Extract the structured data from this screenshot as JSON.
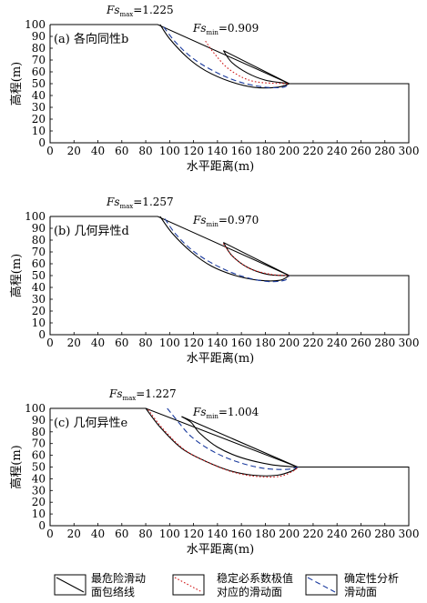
{
  "chart_data": [
    {
      "type": "line",
      "panel_label": "(a) 各向同性b",
      "xlabel": "水平距离(m)",
      "ylabel": "高程(m)",
      "xlim": [
        0,
        300
      ],
      "ylim": [
        0,
        100
      ],
      "xticks": [
        0,
        20,
        40,
        60,
        80,
        100,
        120,
        140,
        160,
        180,
        200,
        220,
        240,
        260,
        280,
        300
      ],
      "yticks": [
        0,
        10,
        20,
        30,
        40,
        50,
        60,
        70,
        80,
        90,
        100
      ],
      "fs_max_label": {
        "sym": "Fs",
        "sub": "max",
        "value": "=1.225"
      },
      "fs_min_label": {
        "sym": "Fs",
        "sub": "min",
        "value": "=0.909"
      },
      "slope_profile": {
        "x": [
          0,
          90,
          200,
          300,
          300,
          0,
          0
        ],
        "y": [
          100,
          100,
          50,
          50,
          0,
          0,
          100
        ]
      },
      "series": [
        {
          "style": "envelope",
          "x": [
            92,
            100,
            115,
            130,
            150,
            170,
            190,
            200
          ],
          "y": [
            100,
            88,
            72,
            61,
            52,
            47,
            47,
            50
          ]
        },
        {
          "style": "envelope",
          "x": [
            145,
            152,
            165,
            180,
            200
          ],
          "y": [
            78,
            68,
            59,
            53,
            50
          ]
        },
        {
          "style": "envelope",
          "x": [
            145,
            200
          ],
          "y": [
            78,
            50
          ]
        },
        {
          "style": "dotted",
          "x": [
            130,
            137,
            150,
            170,
            200
          ],
          "y": [
            86,
            76,
            62,
            52,
            50
          ]
        },
        {
          "style": "dashed",
          "x": [
            95,
            105,
            120,
            140,
            160,
            180,
            195,
            200
          ],
          "y": [
            98,
            85,
            71,
            59,
            51,
            47,
            47,
            50
          ]
        }
      ]
    },
    {
      "type": "line",
      "panel_label": "(b) 几何异性d",
      "xlabel": "水平距离(m)",
      "ylabel": "高程(m)",
      "xlim": [
        0,
        300
      ],
      "ylim": [
        0,
        100
      ],
      "xticks": [
        0,
        20,
        40,
        60,
        80,
        100,
        120,
        140,
        160,
        180,
        200,
        220,
        240,
        260,
        280,
        300
      ],
      "yticks": [
        0,
        10,
        20,
        30,
        40,
        50,
        60,
        70,
        80,
        90,
        100
      ],
      "fs_max_label": {
        "sym": "Fs",
        "sub": "max",
        "value": "=1.257"
      },
      "fs_min_label": {
        "sym": "Fs",
        "sub": "min",
        "value": "=0.970"
      },
      "slope_profile": {
        "x": [
          0,
          90,
          200,
          300,
          300,
          0,
          0
        ],
        "y": [
          100,
          100,
          50,
          50,
          0,
          0,
          100
        ]
      },
      "series": [
        {
          "style": "envelope",
          "x": [
            92,
            102,
            118,
            135,
            155,
            175,
            192,
            200
          ],
          "y": [
            100,
            86,
            70,
            58,
            50,
            46,
            46,
            50
          ]
        },
        {
          "style": "envelope",
          "x": [
            145,
            152,
            165,
            182,
            200
          ],
          "y": [
            78,
            67,
            57,
            51,
            50
          ]
        },
        {
          "style": "envelope",
          "x": [
            145,
            200
          ],
          "y": [
            78,
            50
          ]
        },
        {
          "style": "dotted",
          "x": [
            145,
            153,
            167,
            185,
            200
          ],
          "y": [
            77,
            66,
            56,
            51,
            50
          ]
        },
        {
          "style": "dashed",
          "x": [
            96,
            106,
            122,
            142,
            162,
            182,
            196,
            200
          ],
          "y": [
            98,
            84,
            69,
            57,
            49,
            45,
            46,
            50
          ]
        }
      ]
    },
    {
      "type": "line",
      "panel_label": "(c) 几何异性e",
      "xlabel": "水平距离(m)",
      "ylabel": "高程(m)",
      "xlim": [
        0,
        300
      ],
      "ylim": [
        0,
        100
      ],
      "xticks": [
        0,
        20,
        40,
        60,
        80,
        100,
        120,
        140,
        160,
        180,
        200,
        220,
        240,
        260,
        280,
        300
      ],
      "yticks": [
        0,
        10,
        20,
        30,
        40,
        50,
        60,
        70,
        80,
        90,
        100
      ],
      "fs_max_label": {
        "sym": "Fs",
        "sub": "max",
        "value": "=1.227"
      },
      "fs_min_label": {
        "sym": "Fs",
        "sub": "min",
        "value": "=1.004"
      },
      "slope_profile": {
        "x": [
          0,
          80,
          207,
          300,
          300,
          0,
          0
        ],
        "y": [
          100,
          100,
          50,
          50,
          0,
          0,
          100
        ]
      },
      "series": [
        {
          "style": "envelope",
          "x": [
            80,
            92,
            110,
            130,
            150,
            170,
            190,
            203,
            207
          ],
          "y": [
            100,
            84,
            66,
            55,
            47,
            43,
            43,
            47,
            50
          ]
        },
        {
          "style": "envelope",
          "x": [
            110,
            118,
            125,
            140,
            160,
            185,
            207
          ],
          "y": [
            93,
            88,
            79,
            67,
            58,
            52,
            50
          ]
        },
        {
          "style": "envelope",
          "x": [
            110,
            207
          ],
          "y": [
            93,
            50
          ]
        },
        {
          "style": "dotted",
          "x": [
            82,
            94,
            112,
            132,
            152,
            172,
            192,
            204,
            207
          ],
          "y": [
            99,
            83,
            65,
            54,
            46,
            42,
            42,
            47,
            50
          ]
        },
        {
          "style": "dashed",
          "x": [
            98,
            106,
            118,
            135,
            155,
            178,
            198,
            207
          ],
          "y": [
            100,
            90,
            76,
            64,
            55,
            49,
            48,
            50
          ]
        }
      ]
    }
  ],
  "legend": {
    "envelope": [
      "最危险滑动",
      "面包络线"
    ],
    "dotted": [
      "稳定必系数极值",
      "对应的滑动面"
    ],
    "dashed": [
      "确定性分析",
      "滑动面"
    ]
  },
  "colors": {
    "axis": "#000000",
    "envelope": "#000000",
    "dotted": "#d11a1a",
    "dashed": "#1a3a9e"
  }
}
